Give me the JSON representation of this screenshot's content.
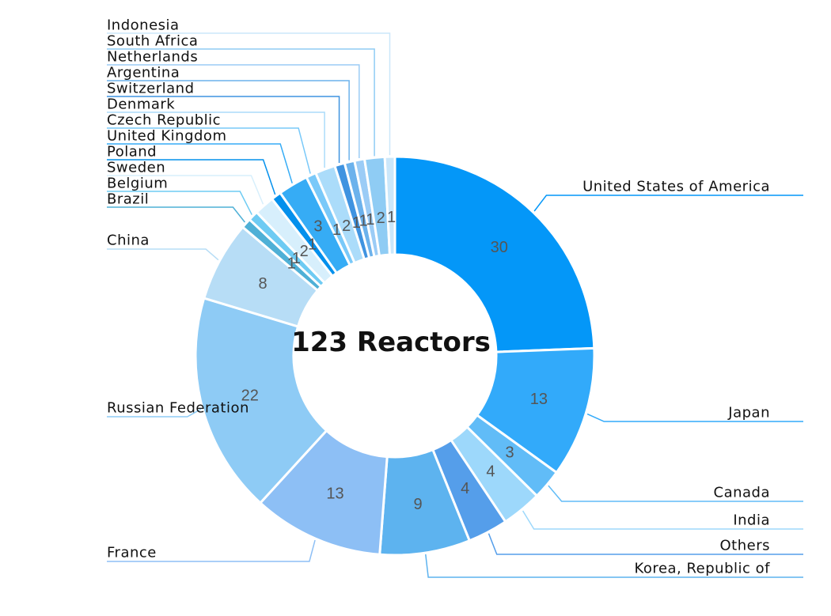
{
  "chart_data": {
    "type": "pie",
    "center_label": "123 Reactors",
    "slices": [
      {
        "label": "United States of America",
        "value": 30,
        "color": "#0497f8"
      },
      {
        "label": "Japan",
        "value": 13,
        "color": "#32aafa"
      },
      {
        "label": "Canada",
        "value": 3,
        "color": "#61bcf7"
      },
      {
        "label": "India",
        "value": 4,
        "color": "#9dd8fb"
      },
      {
        "label": "Others",
        "value": 4,
        "color": "#559eea"
      },
      {
        "label": "Korea, Republic of",
        "value": 9,
        "color": "#5db3ef"
      },
      {
        "label": "France",
        "value": 13,
        "color": "#8dbff5"
      },
      {
        "label": "Russian Federation",
        "value": 22,
        "color": "#8ecbf5"
      },
      {
        "label": "China",
        "value": 8,
        "color": "#b7ddf6"
      },
      {
        "label": "Brazil",
        "value": 1,
        "color": "#4fb0d6"
      },
      {
        "label": "Belgium",
        "value": 1,
        "color": "#6ecbf3"
      },
      {
        "label": "Sweden",
        "value": 2,
        "color": "#d7effc"
      },
      {
        "label": "Poland",
        "value": 1,
        "color": "#0490ec"
      },
      {
        "label": "United Kingdom",
        "value": 3,
        "color": "#36acf5"
      },
      {
        "label": "Czech Republic",
        "value": 1,
        "color": "#79c9f9"
      },
      {
        "label": "Denmark",
        "value": 2,
        "color": "#abdcfa"
      },
      {
        "label": "Switzerland",
        "value": 1,
        "color": "#3f93e0"
      },
      {
        "label": "Argentina",
        "value": 1,
        "color": "#6cb2ec"
      },
      {
        "label": "Netherlands",
        "value": 1,
        "color": "#9bccf6"
      },
      {
        "label": "South Africa",
        "value": 2,
        "color": "#8fccf4"
      },
      {
        "label": "Indonesia",
        "value": 1,
        "color": "#cbe7fa"
      }
    ]
  }
}
